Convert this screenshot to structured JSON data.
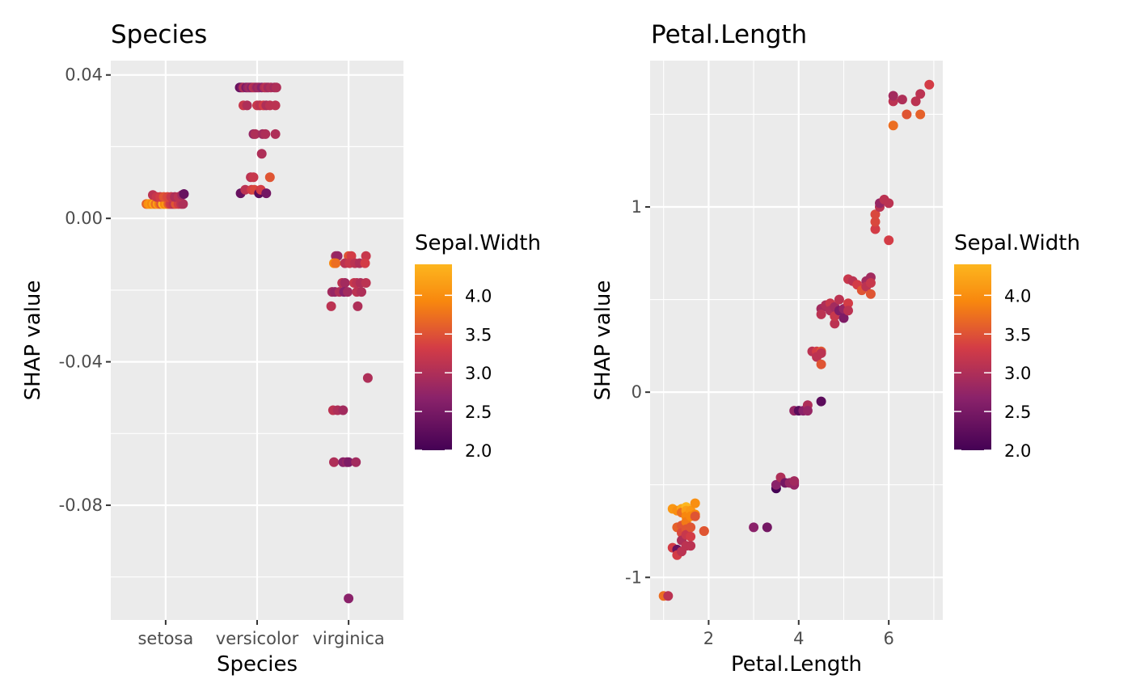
{
  "chart_data": [
    {
      "type": "scatter",
      "title": "Species",
      "xlabel": "Species",
      "ylabel": "SHAP value",
      "categories": [
        "setosa",
        "versicolor",
        "virginica"
      ],
      "y_ticks": [
        0.04,
        0.0,
        -0.04,
        -0.08
      ],
      "y_tick_labels": [
        "0.04",
        "0.00",
        "-0.04",
        "-0.08"
      ],
      "ylim": [
        -0.112,
        0.044
      ],
      "grid": true,
      "color_by": "Sepal.Width",
      "points": [
        [
          "setosa",
          -0.21,
          0.004,
          3.5
        ],
        [
          "setosa",
          -0.19,
          0.004,
          3.9
        ],
        [
          "setosa",
          -0.17,
          0.004,
          4.0
        ],
        [
          "setosa",
          -0.15,
          0.004,
          3.8
        ],
        [
          "setosa",
          -0.13,
          0.004,
          4.2
        ],
        [
          "setosa",
          -0.11,
          0.004,
          3.6
        ],
        [
          "setosa",
          -0.09,
          0.004,
          4.1
        ],
        [
          "setosa",
          -0.07,
          0.004,
          3.7
        ],
        [
          "setosa",
          -0.05,
          0.004,
          3.4
        ],
        [
          "setosa",
          -0.03,
          0.004,
          4.4
        ],
        [
          "setosa",
          -0.01,
          0.004,
          3.8
        ],
        [
          "setosa",
          0.01,
          0.004,
          4.0
        ],
        [
          "setosa",
          0.03,
          0.004,
          3.5
        ],
        [
          "setosa",
          0.05,
          0.004,
          3.2
        ],
        [
          "setosa",
          0.07,
          0.004,
          3.1
        ],
        [
          "setosa",
          0.09,
          0.004,
          3.0
        ],
        [
          "setosa",
          0.11,
          0.004,
          3.4
        ],
        [
          "setosa",
          0.14,
          0.004,
          3.2
        ],
        [
          "setosa",
          0.17,
          0.004,
          3.0
        ],
        [
          "setosa",
          0.19,
          0.004,
          2.9
        ],
        [
          "setosa",
          -0.14,
          0.0065,
          3.0
        ],
        [
          "setosa",
          -0.1,
          0.006,
          3.1
        ],
        [
          "setosa",
          -0.06,
          0.006,
          3.2
        ],
        [
          "setosa",
          -0.02,
          0.006,
          3.4
        ],
        [
          "setosa",
          0.02,
          0.006,
          3.3
        ],
        [
          "setosa",
          0.06,
          0.006,
          3.1
        ],
        [
          "setosa",
          0.1,
          0.006,
          2.9
        ],
        [
          "setosa",
          0.14,
          0.006,
          3.0
        ],
        [
          "setosa",
          0.18,
          0.0065,
          2.8
        ],
        [
          "setosa",
          0.2,
          0.0068,
          2.3
        ],
        [
          "versicolor",
          -0.19,
          0.0365,
          2.3
        ],
        [
          "versicolor",
          -0.17,
          0.0365,
          2.4
        ],
        [
          "versicolor",
          -0.15,
          0.0365,
          2.9
        ],
        [
          "versicolor",
          -0.12,
          0.0365,
          2.5
        ],
        [
          "versicolor",
          -0.1,
          0.0365,
          2.7
        ],
        [
          "versicolor",
          -0.08,
          0.0365,
          2.8
        ],
        [
          "versicolor",
          -0.06,
          0.0365,
          2.6
        ],
        [
          "versicolor",
          -0.04,
          0.0365,
          3.0
        ],
        [
          "versicolor",
          -0.02,
          0.0365,
          2.9
        ],
        [
          "versicolor",
          0.0,
          0.0365,
          2.7
        ],
        [
          "versicolor",
          0.02,
          0.0365,
          2.8
        ],
        [
          "versicolor",
          0.05,
          0.0365,
          2.6
        ],
        [
          "versicolor",
          0.08,
          0.0365,
          2.9
        ],
        [
          "versicolor",
          0.1,
          0.0365,
          3.0
        ],
        [
          "versicolor",
          0.12,
          0.0365,
          2.8
        ],
        [
          "versicolor",
          0.15,
          0.0365,
          2.9
        ],
        [
          "versicolor",
          0.19,
          0.0365,
          2.8
        ],
        [
          "versicolor",
          0.21,
          0.0365,
          2.9
        ],
        [
          "versicolor",
          -0.15,
          0.0315,
          3.1
        ],
        [
          "versicolor",
          -0.11,
          0.0315,
          2.9
        ],
        [
          "versicolor",
          0.0,
          0.0315,
          3.1
        ],
        [
          "versicolor",
          0.03,
          0.0315,
          3.0
        ],
        [
          "versicolor",
          0.07,
          0.0315,
          3.2
        ],
        [
          "versicolor",
          0.1,
          0.0315,
          2.9
        ],
        [
          "versicolor",
          0.14,
          0.0315,
          3.0
        ],
        [
          "versicolor",
          0.2,
          0.0315,
          3.0
        ],
        [
          "versicolor",
          -0.04,
          0.0235,
          2.7
        ],
        [
          "versicolor",
          -0.02,
          0.0235,
          2.9
        ],
        [
          "versicolor",
          0.06,
          0.0235,
          2.8
        ],
        [
          "versicolor",
          0.09,
          0.0235,
          2.9
        ],
        [
          "versicolor",
          0.2,
          0.0235,
          2.9
        ],
        [
          "versicolor",
          0.05,
          0.018,
          2.9
        ],
        [
          "versicolor",
          -0.07,
          0.0115,
          3.0
        ],
        [
          "versicolor",
          -0.04,
          0.0115,
          3.1
        ],
        [
          "versicolor",
          0.14,
          0.0115,
          3.4
        ],
        [
          "versicolor",
          -0.18,
          0.007,
          2.3
        ],
        [
          "versicolor",
          -0.13,
          0.008,
          3.0
        ],
        [
          "versicolor",
          -0.06,
          0.008,
          3.2
        ],
        [
          "versicolor",
          -0.03,
          0.008,
          3.3
        ],
        [
          "versicolor",
          0.02,
          0.007,
          2.2
        ],
        [
          "versicolor",
          0.04,
          0.008,
          3.2
        ],
        [
          "versicolor",
          0.1,
          0.007,
          2.4
        ],
        [
          "virginica",
          -0.14,
          -0.0105,
          2.8
        ],
        [
          "virginica",
          -0.12,
          -0.0105,
          2.7
        ],
        [
          "virginica",
          0.0,
          -0.0105,
          3.4
        ],
        [
          "virginica",
          0.03,
          -0.0105,
          3.2
        ],
        [
          "virginica",
          0.19,
          -0.0105,
          3.1
        ],
        [
          "virginica",
          -0.16,
          -0.0125,
          3.8
        ],
        [
          "virginica",
          -0.14,
          -0.0125,
          3.6
        ],
        [
          "virginica",
          -0.04,
          -0.0125,
          3.0
        ],
        [
          "virginica",
          0.01,
          -0.0125,
          3.1
        ],
        [
          "virginica",
          0.07,
          -0.0125,
          3.0
        ],
        [
          "virginica",
          0.12,
          -0.0125,
          2.9
        ],
        [
          "virginica",
          0.18,
          -0.0125,
          3.2
        ],
        [
          "virginica",
          -0.07,
          -0.018,
          3.0
        ],
        [
          "virginica",
          -0.04,
          -0.018,
          2.8
        ],
        [
          "virginica",
          0.06,
          -0.018,
          3.1
        ],
        [
          "virginica",
          0.09,
          -0.018,
          3.0
        ],
        [
          "virginica",
          0.13,
          -0.018,
          2.9
        ],
        [
          "virginica",
          0.19,
          -0.018,
          3.0
        ],
        [
          "virginica",
          -0.18,
          -0.0205,
          2.8
        ],
        [
          "virginica",
          -0.15,
          -0.0205,
          2.7
        ],
        [
          "virginica",
          -0.1,
          -0.0205,
          2.9
        ],
        [
          "virginica",
          -0.05,
          -0.0205,
          2.6
        ],
        [
          "virginica",
          -0.01,
          -0.0205,
          2.8
        ],
        [
          "virginica",
          0.09,
          -0.0205,
          3.0
        ],
        [
          "virginica",
          0.14,
          -0.0205,
          2.9
        ],
        [
          "virginica",
          -0.19,
          -0.0245,
          3.0
        ],
        [
          "virginica",
          0.1,
          -0.0245,
          2.9
        ],
        [
          "virginica",
          0.21,
          -0.0445,
          2.9
        ],
        [
          "virginica",
          -0.17,
          -0.0535,
          3.0
        ],
        [
          "virginica",
          -0.12,
          -0.0535,
          2.9
        ],
        [
          "virginica",
          -0.06,
          -0.0535,
          2.8
        ],
        [
          "virginica",
          -0.16,
          -0.068,
          2.9
        ],
        [
          "virginica",
          -0.06,
          -0.068,
          2.6
        ],
        [
          "virginica",
          -0.02,
          -0.068,
          2.7
        ],
        [
          "virginica",
          0.0,
          -0.068,
          2.5
        ],
        [
          "virginica",
          0.08,
          -0.068,
          2.8
        ],
        [
          "virginica",
          0.0,
          -0.106,
          2.6
        ]
      ],
      "point_fields": [
        "category",
        "jitter",
        "shap_value",
        "Sepal.Width"
      ]
    },
    {
      "type": "scatter",
      "title": "Petal.Length",
      "xlabel": "Petal.Length",
      "ylabel": "SHAP value",
      "x_ticks": [
        2,
        4,
        6
      ],
      "x_tick_labels": [
        "2",
        "4",
        "6"
      ],
      "y_ticks": [
        1,
        0,
        -1
      ],
      "y_tick_labels": [
        "1",
        "0",
        "-1"
      ],
      "xlim": [
        0.7,
        7.2
      ],
      "ylim": [
        -1.23,
        1.79
      ],
      "grid": true,
      "color_by": "Sepal.Width",
      "points": [
        [
          1.0,
          -1.1,
          3.6
        ],
        [
          1.1,
          -1.1,
          3.0
        ],
        [
          1.2,
          -0.63,
          4.0
        ],
        [
          1.2,
          -0.84,
          3.2
        ],
        [
          1.3,
          -0.64,
          3.9
        ],
        [
          1.3,
          -0.73,
          3.5
        ],
        [
          1.3,
          -0.85,
          2.3
        ],
        [
          1.3,
          -0.88,
          3.2
        ],
        [
          1.4,
          -0.63,
          4.2
        ],
        [
          1.4,
          -0.65,
          3.6
        ],
        [
          1.4,
          -0.72,
          3.4
        ],
        [
          1.4,
          -0.76,
          3.3
        ],
        [
          1.4,
          -0.8,
          2.9
        ],
        [
          1.4,
          -0.86,
          3.0
        ],
        [
          1.5,
          -0.62,
          4.4
        ],
        [
          1.5,
          -0.64,
          4.1
        ],
        [
          1.5,
          -0.67,
          3.8
        ],
        [
          1.5,
          -0.7,
          3.7
        ],
        [
          1.5,
          -0.74,
          3.4
        ],
        [
          1.5,
          -0.77,
          3.1
        ],
        [
          1.5,
          -0.83,
          3.0
        ],
        [
          1.6,
          -0.64,
          4.0
        ],
        [
          1.6,
          -0.67,
          3.8
        ],
        [
          1.6,
          -0.73,
          3.4
        ],
        [
          1.6,
          -0.78,
          3.2
        ],
        [
          1.6,
          -0.83,
          3.0
        ],
        [
          1.7,
          -0.6,
          3.9
        ],
        [
          1.7,
          -0.66,
          3.8
        ],
        [
          1.7,
          -0.67,
          3.4
        ],
        [
          1.9,
          -0.75,
          3.8
        ],
        [
          1.9,
          -0.75,
          3.4
        ],
        [
          3.0,
          -0.73,
          2.6
        ],
        [
          3.3,
          -0.73,
          2.4
        ],
        [
          3.5,
          -0.52,
          2.0
        ],
        [
          3.5,
          -0.5,
          2.6
        ],
        [
          3.6,
          -0.46,
          2.9
        ],
        [
          3.7,
          -0.49,
          2.4
        ],
        [
          3.8,
          -0.49,
          2.7
        ],
        [
          3.9,
          -0.49,
          2.5
        ],
        [
          3.9,
          -0.5,
          2.7
        ],
        [
          3.9,
          -0.48,
          2.8
        ],
        [
          3.9,
          -0.1,
          2.7
        ],
        [
          4.0,
          -0.1,
          2.2
        ],
        [
          4.1,
          -0.1,
          2.6
        ],
        [
          4.2,
          -0.07,
          2.9
        ],
        [
          4.2,
          -0.1,
          2.7
        ],
        [
          4.5,
          -0.05,
          2.2
        ],
        [
          4.3,
          0.22,
          3.0
        ],
        [
          4.4,
          0.22,
          3.2
        ],
        [
          4.4,
          0.19,
          3.0
        ],
        [
          4.5,
          0.22,
          3.4
        ],
        [
          4.5,
          0.15,
          3.4
        ],
        [
          4.5,
          0.21,
          3.0
        ],
        [
          4.5,
          0.45,
          2.8
        ],
        [
          4.5,
          0.42,
          3.0
        ],
        [
          4.6,
          0.47,
          2.9
        ],
        [
          4.7,
          0.48,
          3.1
        ],
        [
          4.7,
          0.44,
          2.9
        ],
        [
          4.8,
          0.46,
          2.8
        ],
        [
          4.8,
          0.37,
          3.0
        ],
        [
          4.8,
          0.41,
          3.1
        ],
        [
          4.9,
          0.5,
          3.0
        ],
        [
          4.9,
          0.44,
          2.5
        ],
        [
          5.0,
          0.4,
          2.5
        ],
        [
          5.0,
          0.45,
          2.7
        ],
        [
          5.1,
          0.48,
          3.2
        ],
        [
          5.1,
          0.44,
          3.0
        ],
        [
          5.1,
          0.61,
          3.1
        ],
        [
          5.2,
          0.6,
          3.0
        ],
        [
          5.3,
          0.58,
          3.2
        ],
        [
          5.4,
          0.55,
          3.4
        ],
        [
          5.5,
          0.6,
          2.8
        ],
        [
          5.5,
          0.57,
          3.0
        ],
        [
          5.6,
          0.62,
          2.8
        ],
        [
          5.6,
          0.59,
          3.1
        ],
        [
          5.6,
          0.53,
          3.4
        ],
        [
          5.7,
          0.88,
          3.2
        ],
        [
          5.7,
          0.92,
          3.3
        ],
        [
          5.7,
          0.96,
          3.3
        ],
        [
          5.8,
          1.0,
          3.0
        ],
        [
          5.8,
          1.02,
          2.7
        ],
        [
          5.9,
          1.04,
          3.0
        ],
        [
          6.0,
          1.02,
          3.0
        ],
        [
          6.0,
          0.82,
          3.2
        ],
        [
          6.1,
          1.44,
          3.6
        ],
        [
          6.1,
          1.57,
          3.0
        ],
        [
          6.1,
          1.6,
          2.8
        ],
        [
          6.3,
          1.58,
          2.9
        ],
        [
          6.4,
          1.5,
          3.4
        ],
        [
          6.6,
          1.57,
          3.0
        ],
        [
          6.7,
          1.5,
          3.5
        ],
        [
          6.7,
          1.61,
          3.0
        ],
        [
          6.9,
          1.66,
          3.2
        ]
      ],
      "point_fields": [
        "Petal.Length",
        "shap_value",
        "Sepal.Width"
      ]
    }
  ],
  "legend": {
    "title": "Sepal.Width",
    "ticks": [
      4.0,
      3.5,
      3.0,
      2.5,
      2.0
    ],
    "tick_labels": [
      "4.0",
      "3.5",
      "3.0",
      "2.5",
      "2.0"
    ],
    "range": [
      2.0,
      4.4
    ],
    "palette": "inferno",
    "colors": [
      "#440154",
      "#8A226A",
      "#D33C46",
      "#F8870E",
      "#FDB61E"
    ]
  }
}
